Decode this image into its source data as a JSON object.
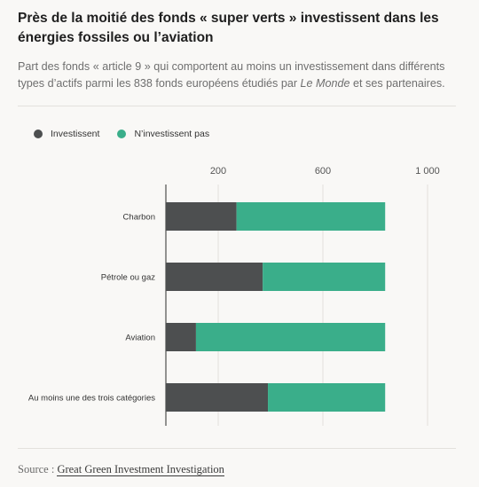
{
  "header": {
    "title": "Près de la moitié des fonds « super verts » investissent dans les énergies fossiles ou l’aviation",
    "subtitle_before": "Part des fonds « article 9 » qui comportent au moins un investissement dans différents types d’actifs parmi les 838 fonds européens étudiés par ",
    "subtitle_italic": "Le Monde",
    "subtitle_after": " et ses partenaires."
  },
  "legend": {
    "items": [
      {
        "label": "Investissent",
        "color": "#4d4f50"
      },
      {
        "label": "N’investissent pas",
        "color": "#3aae8a"
      }
    ]
  },
  "chart_data": {
    "type": "bar",
    "orientation": "horizontal",
    "stacked": true,
    "categories": [
      "Charbon",
      "Pétrole ou gaz",
      "Aviation",
      "Au moins une des trois catégories"
    ],
    "series": [
      {
        "name": "Investissent",
        "color": "#4d4f50",
        "values": [
          270,
          370,
          115,
          390
        ]
      },
      {
        "name": "N’investissent pas",
        "color": "#3aae8a",
        "values": [
          568,
          468,
          723,
          448
        ]
      }
    ],
    "xlim": [
      0,
      1000
    ],
    "xticks": [
      200,
      600,
      1000
    ],
    "xtick_labels": [
      "200",
      "600",
      "1 000"
    ],
    "grid": true,
    "legend_position": "top-left"
  },
  "footer": {
    "source_label": "Source : ",
    "source_link": "Great Green Investment Investigation"
  }
}
